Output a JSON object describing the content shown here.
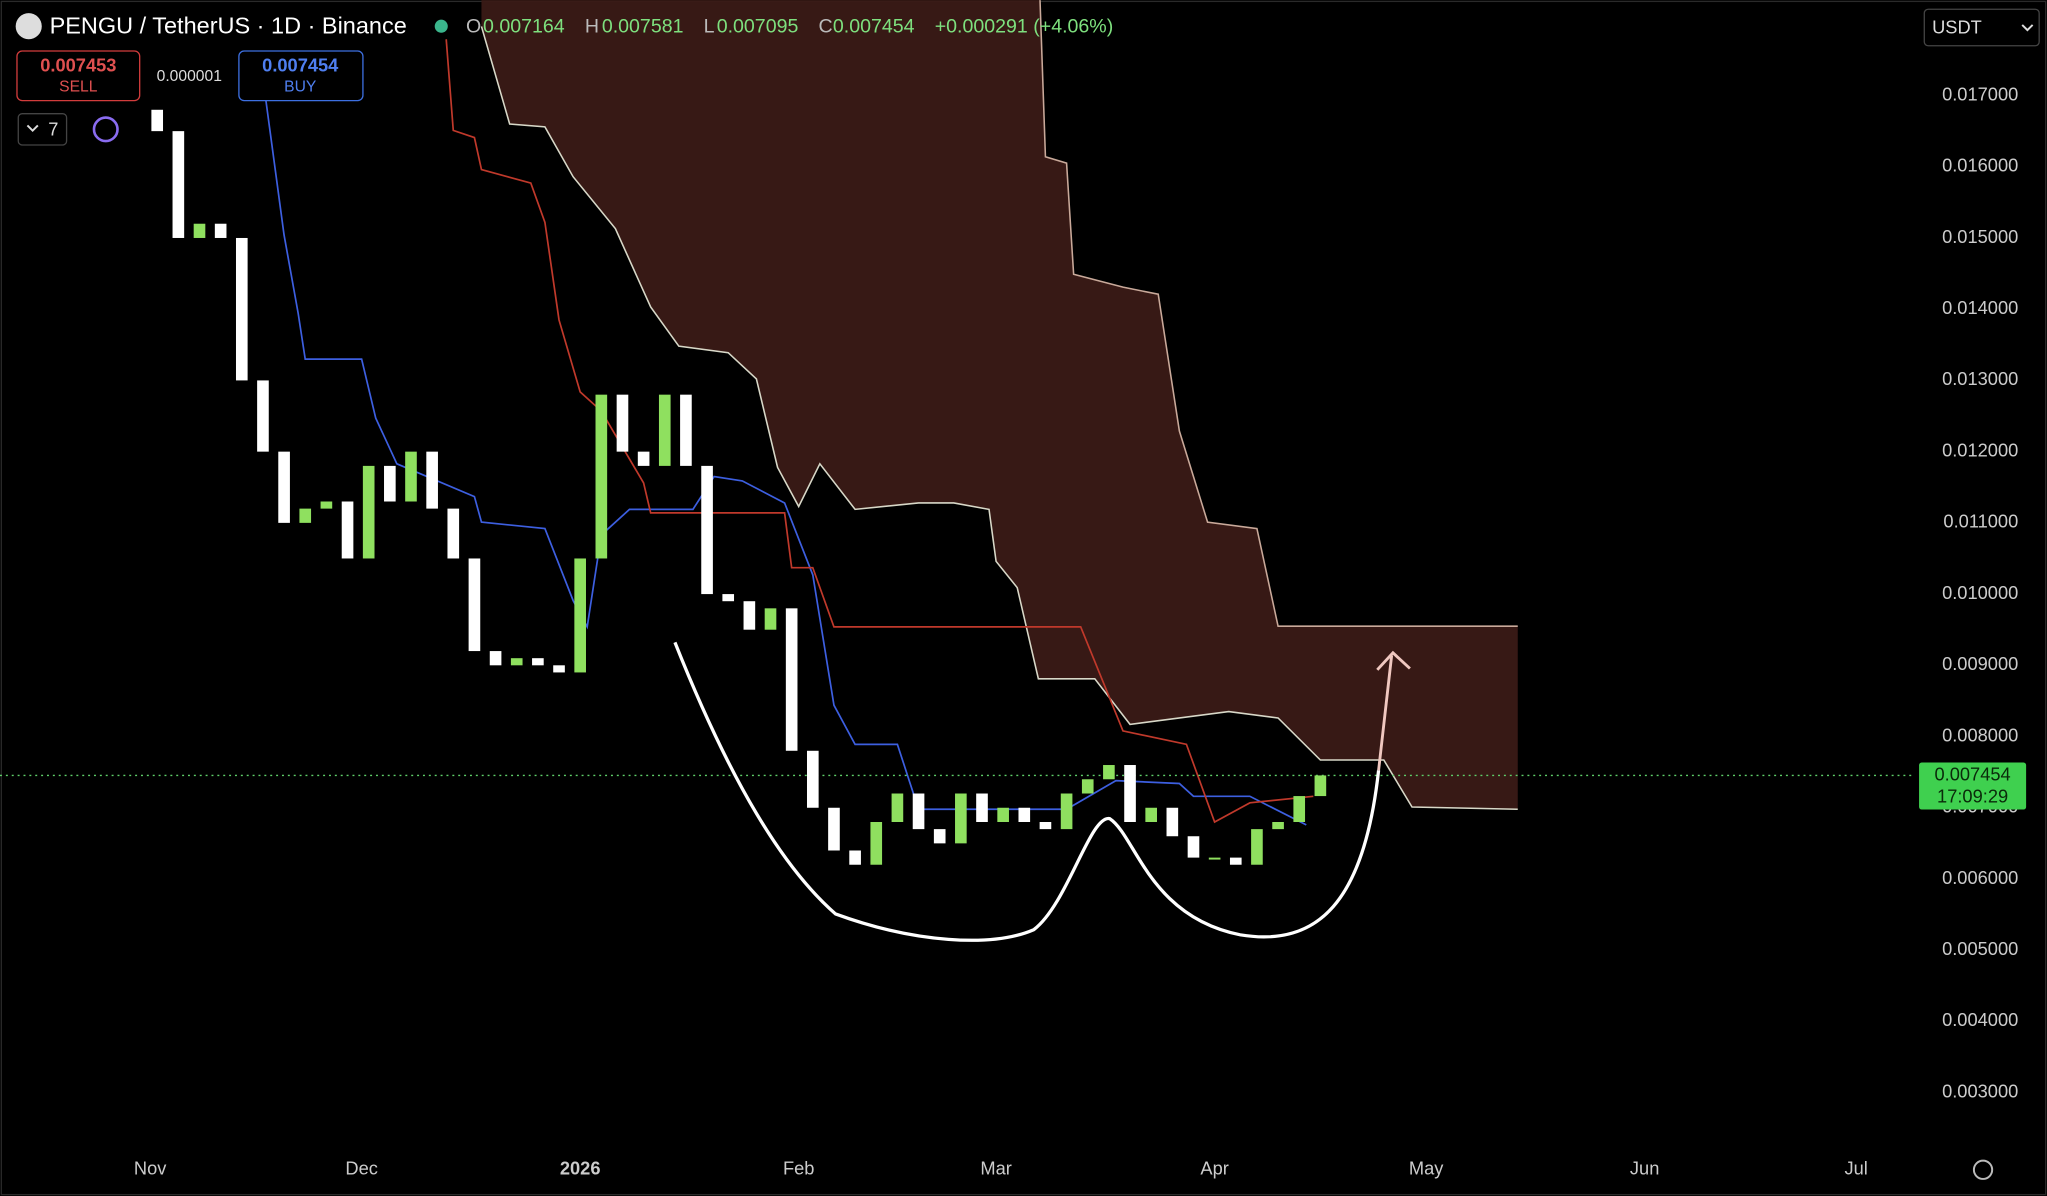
{
  "header": {
    "symbol": "PENGU / TetherUS · 1D · Binance",
    "o_label": "O",
    "open": "0.007164",
    "h_label": "H",
    "high": "0.007581",
    "l_label": "L",
    "low": "0.007095",
    "c_label": "C",
    "close": "0.007454",
    "change": "+0.000291 (+4.06%)",
    "sell_price": "0.007453",
    "sell": "SELL",
    "spread": "0.000001",
    "buy_price": "0.007454",
    "buy": "BUY",
    "indicators": "7",
    "currency": "USDT"
  },
  "price_label": {
    "price": "0.007454",
    "countdown": "17:09:29"
  },
  "chart_data": {
    "type": "candlestick",
    "up_color": "#8fe05f",
    "down_color": "#ffffff",
    "x": [
      1,
      4,
      7,
      10,
      13,
      16,
      19,
      22,
      25,
      28,
      31,
      34,
      37,
      40,
      43,
      46,
      49,
      52,
      55,
      58,
      61,
      64,
      67,
      70,
      73,
      76,
      79,
      82,
      85,
      88,
      91,
      94,
      97,
      100,
      103,
      106,
      109,
      112,
      115,
      118,
      121,
      124,
      127,
      130,
      133,
      136,
      139,
      142,
      145,
      148,
      151,
      154,
      157,
      160,
      163,
      166
    ],
    "open": [
      0.0168,
      0.0165,
      0.015,
      0.0152,
      0.015,
      0.013,
      0.012,
      0.011,
      0.0112,
      0.0113,
      0.0105,
      0.0118,
      0.0113,
      0.012,
      0.0112,
      0.0105,
      0.0092,
      0.009,
      0.0091,
      0.009,
      0.0089,
      0.0105,
      0.0128,
      0.012,
      0.0118,
      0.0128,
      0.0118,
      0.01,
      0.0099,
      0.0095,
      0.0098,
      0.0078,
      0.007,
      0.0064,
      0.0062,
      0.0068,
      0.0072,
      0.0067,
      0.0065,
      0.0072,
      0.0068,
      0.007,
      0.0068,
      0.0067,
      0.0072,
      0.0074,
      0.0076,
      0.0068,
      0.007,
      0.0066,
      0.0063,
      0.0063,
      0.0062,
      0.0067,
      0.0068,
      0.007164
    ],
    "close": [
      0.0165,
      0.015,
      0.0152,
      0.015,
      0.013,
      0.012,
      0.011,
      0.0112,
      0.0113,
      0.0105,
      0.0118,
      0.0113,
      0.012,
      0.0112,
      0.0105,
      0.0092,
      0.009,
      0.0091,
      0.009,
      0.0089,
      0.0105,
      0.0128,
      0.012,
      0.0118,
      0.0128,
      0.0118,
      0.01,
      0.0099,
      0.0095,
      0.0098,
      0.0078,
      0.007,
      0.0064,
      0.0062,
      0.0068,
      0.0072,
      0.0067,
      0.0065,
      0.0072,
      0.0068,
      0.007,
      0.0068,
      0.0067,
      0.0072,
      0.0074,
      0.0076,
      0.0068,
      0.007,
      0.0066,
      0.0063,
      0.0063,
      0.0062,
      0.0067,
      0.0068,
      0.007164,
      0.007454
    ],
    "last_price": 0.007454,
    "cloud": {
      "color": "#3a1a16",
      "upper": {
        "color": "#c9a99a",
        "x": [
          47,
          126,
          127,
          130,
          131,
          138,
          143,
          144,
          146,
          150,
          157,
          160,
          194
        ],
        "values": [
          0.019,
          0.019,
          0.01614,
          0.01605,
          0.01449,
          0.01431,
          0.01421,
          0.01357,
          0.01229,
          0.01101,
          0.01092,
          0.00955,
          0.00955
        ]
      },
      "lower": {
        "color": "#d8d8c8",
        "x": [
          47,
          51,
          56,
          60,
          66,
          71,
          75,
          82,
          86,
          89,
          92,
          95,
          100,
          109,
          114,
          119,
          120,
          123,
          126,
          134,
          139,
          153,
          160,
          166,
          175,
          179,
          194
        ],
        "values": [
          0.01797,
          0.0166,
          0.01656,
          0.01586,
          0.01513,
          0.01403,
          0.01348,
          0.01339,
          0.01302,
          0.01178,
          0.01123,
          0.01183,
          0.01119,
          0.01128,
          0.01128,
          0.01119,
          0.01046,
          0.01009,
          0.00881,
          0.00881,
          0.00817,
          0.00835,
          0.00826,
          0.00767,
          0.00767,
          0.00701,
          0.00698
        ]
      }
    },
    "overlays": [
      {
        "color": "#3d5fe0",
        "x": [
          16,
          19,
          21,
          22,
          30,
          32,
          35,
          46,
          47,
          56,
          60,
          62,
          64,
          68,
          77,
          80,
          84,
          90,
          94,
          97,
          100,
          106,
          109,
          130,
          137,
          146,
          148,
          156,
          164
        ],
        "values": [
          0.01724,
          0.01504,
          0.01394,
          0.0133,
          0.0133,
          0.01247,
          0.01183,
          0.01137,
          0.01101,
          0.01092,
          0.00991,
          0.00954,
          0.01083,
          0.01119,
          0.01119,
          0.01165,
          0.01159,
          0.01128,
          0.01027,
          0.00844,
          0.00789,
          0.00789,
          0.00698,
          0.00698,
          0.00738,
          0.00734,
          0.00716,
          0.00716,
          0.00676
        ]
      },
      {
        "color": "#c0392b",
        "x": [
          42,
          43,
          46,
          47,
          54,
          56,
          58,
          61,
          64,
          70,
          71,
          90,
          91,
          94,
          97,
          132,
          135,
          138,
          147,
          151,
          156,
          165
        ],
        "values": [
          0.01779,
          0.01651,
          0.01641,
          0.01596,
          0.01577,
          0.01522,
          0.01385,
          0.01284,
          0.01257,
          0.01156,
          0.01114,
          0.01114,
          0.01037,
          0.01037,
          0.00954,
          0.00954,
          0.00881,
          0.00808,
          0.00789,
          0.0068,
          0.00707,
          0.00716
        ]
      }
    ],
    "xlim": [
      -21.3,
      250
    ],
    "xticks": [
      {
        "value": 0,
        "label": "Nov"
      },
      {
        "value": 30,
        "label": "Dec"
      },
      {
        "value": 61,
        "label": "2026"
      },
      {
        "value": 92,
        "label": "Feb"
      },
      {
        "value": 120,
        "label": "Mar"
      },
      {
        "value": 151,
        "label": "Apr"
      },
      {
        "value": 181,
        "label": "May"
      },
      {
        "value": 212,
        "label": "Jun"
      },
      {
        "value": 242,
        "label": "Jul"
      }
    ],
    "ylim": [
      0.00221,
      0.01834
    ],
    "yticks": [
      {
        "value": 0.003,
        "label": "0.003000"
      },
      {
        "value": 0.004,
        "label": "0.004000"
      },
      {
        "value": 0.005,
        "label": "0.005000"
      },
      {
        "value": 0.006,
        "label": "0.006000"
      },
      {
        "value": 0.007,
        "label": "0.007000"
      },
      {
        "value": 0.008,
        "label": "0.008000"
      },
      {
        "value": 0.009,
        "label": "0.009000"
      },
      {
        "value": 0.01,
        "label": "0.010000"
      },
      {
        "value": 0.011,
        "label": "0.011000"
      },
      {
        "value": 0.012,
        "label": "0.012000"
      },
      {
        "value": 0.013,
        "label": "0.013000"
      },
      {
        "value": 0.014,
        "label": "0.014000"
      },
      {
        "value": 0.015,
        "label": "0.015000"
      },
      {
        "value": 0.016,
        "label": "0.016000"
      },
      {
        "value": 0.017,
        "label": "0.017000"
      }
    ]
  }
}
